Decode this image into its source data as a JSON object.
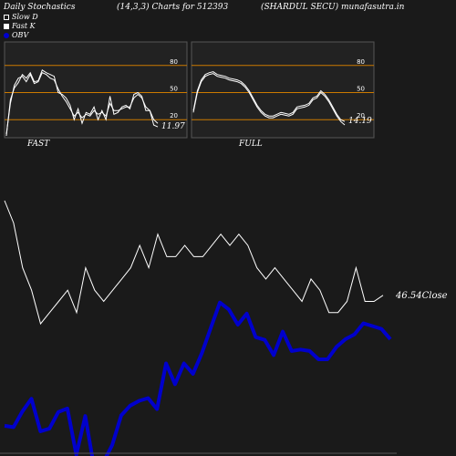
{
  "header": {
    "left": "Daily Stochastics",
    "params": "(14,3,3) Charts for 512393",
    "right": "(SHARDUL SECU) munafasutra.in"
  },
  "legend": {
    "items": [
      {
        "label": "Slow D",
        "swatch": "white-outline"
      },
      {
        "label": "Fast K",
        "swatch": "white"
      },
      {
        "label": "OBV",
        "swatch": "blue"
      }
    ]
  },
  "colors": {
    "background": "#1a1a1a",
    "panel": "#222222",
    "level_line": "#cc7a00",
    "price_line": "#ffffff",
    "obv_line": "#0000cc"
  },
  "chart_data": [
    {
      "type": "line",
      "panel": "FAST",
      "title": "FAST",
      "ylim": [
        0,
        100
      ],
      "yticks": [
        20,
        50,
        80
      ],
      "levels": [
        20,
        50,
        80
      ],
      "end_label": "11.97",
      "series": [
        {
          "values": [
            2,
            42,
            55,
            61,
            70,
            66,
            72,
            62,
            63,
            75,
            72,
            70,
            68,
            50,
            48,
            44,
            36,
            20,
            32,
            16,
            28,
            26,
            34,
            20,
            30,
            20,
            46,
            26,
            28,
            34,
            36,
            32,
            48,
            50,
            46,
            30,
            30,
            14,
            11.97
          ]
        },
        {
          "values": [
            4,
            38,
            58,
            66,
            68,
            62,
            70,
            60,
            62,
            72,
            70,
            66,
            64,
            54,
            46,
            40,
            32,
            24,
            28,
            22,
            26,
            24,
            30,
            26,
            28,
            24,
            38,
            30,
            30,
            32,
            34,
            34,
            44,
            48,
            44,
            34,
            30,
            20,
            16
          ]
        }
      ]
    },
    {
      "type": "line",
      "panel": "FULL",
      "title": "FULL",
      "ylim": [
        0,
        100
      ],
      "yticks": [
        20,
        50,
        80
      ],
      "levels": [
        20,
        50,
        80
      ],
      "end_label": "14.19",
      "series": [
        {
          "values": [
            30,
            52,
            64,
            70,
            72,
            73,
            70,
            69,
            68,
            66,
            65,
            64,
            62,
            58,
            52,
            44,
            36,
            30,
            26,
            24,
            24,
            26,
            28,
            27,
            26,
            28,
            34,
            35,
            36,
            38,
            44,
            46,
            52,
            48,
            42,
            34,
            26,
            20,
            18
          ]
        },
        {
          "values": [
            28,
            50,
            62,
            68,
            70,
            71,
            68,
            67,
            66,
            64,
            63,
            62,
            60,
            56,
            50,
            42,
            34,
            28,
            24,
            22,
            22,
            24,
            26,
            25,
            24,
            26,
            32,
            33,
            34,
            36,
            42,
            44,
            50,
            46,
            40,
            32,
            24,
            18,
            14.19
          ]
        }
      ]
    },
    {
      "type": "line",
      "panel": "price",
      "end_label": "46.54Close",
      "series": [
        {
          "values": [
            55,
            53,
            49,
            47,
            44,
            45,
            46,
            47,
            45,
            49,
            47,
            46,
            47,
            48,
            49,
            51,
            49,
            52,
            50,
            50,
            51,
            50,
            50,
            51,
            52,
            51,
            52,
            51,
            49,
            48,
            49,
            48,
            47,
            46,
            48,
            47,
            45,
            45,
            46,
            49,
            46,
            46,
            46.54
          ]
        },
        {
          "values": [
            100,
            98,
            121,
            139,
            92,
            96,
            120,
            125,
            58,
            114,
            38,
            47,
            72,
            115,
            129,
            136,
            140,
            124,
            190,
            160,
            190,
            175,
            205,
            242,
            278,
            268,
            246,
            262,
            228,
            224,
            202,
            236,
            208,
            210,
            208,
            196,
            196,
            214,
            225,
            232,
            248,
            244,
            240,
            225
          ]
        }
      ]
    }
  ],
  "panels": {
    "fast_label": "FAST",
    "full_label": "FULL"
  }
}
